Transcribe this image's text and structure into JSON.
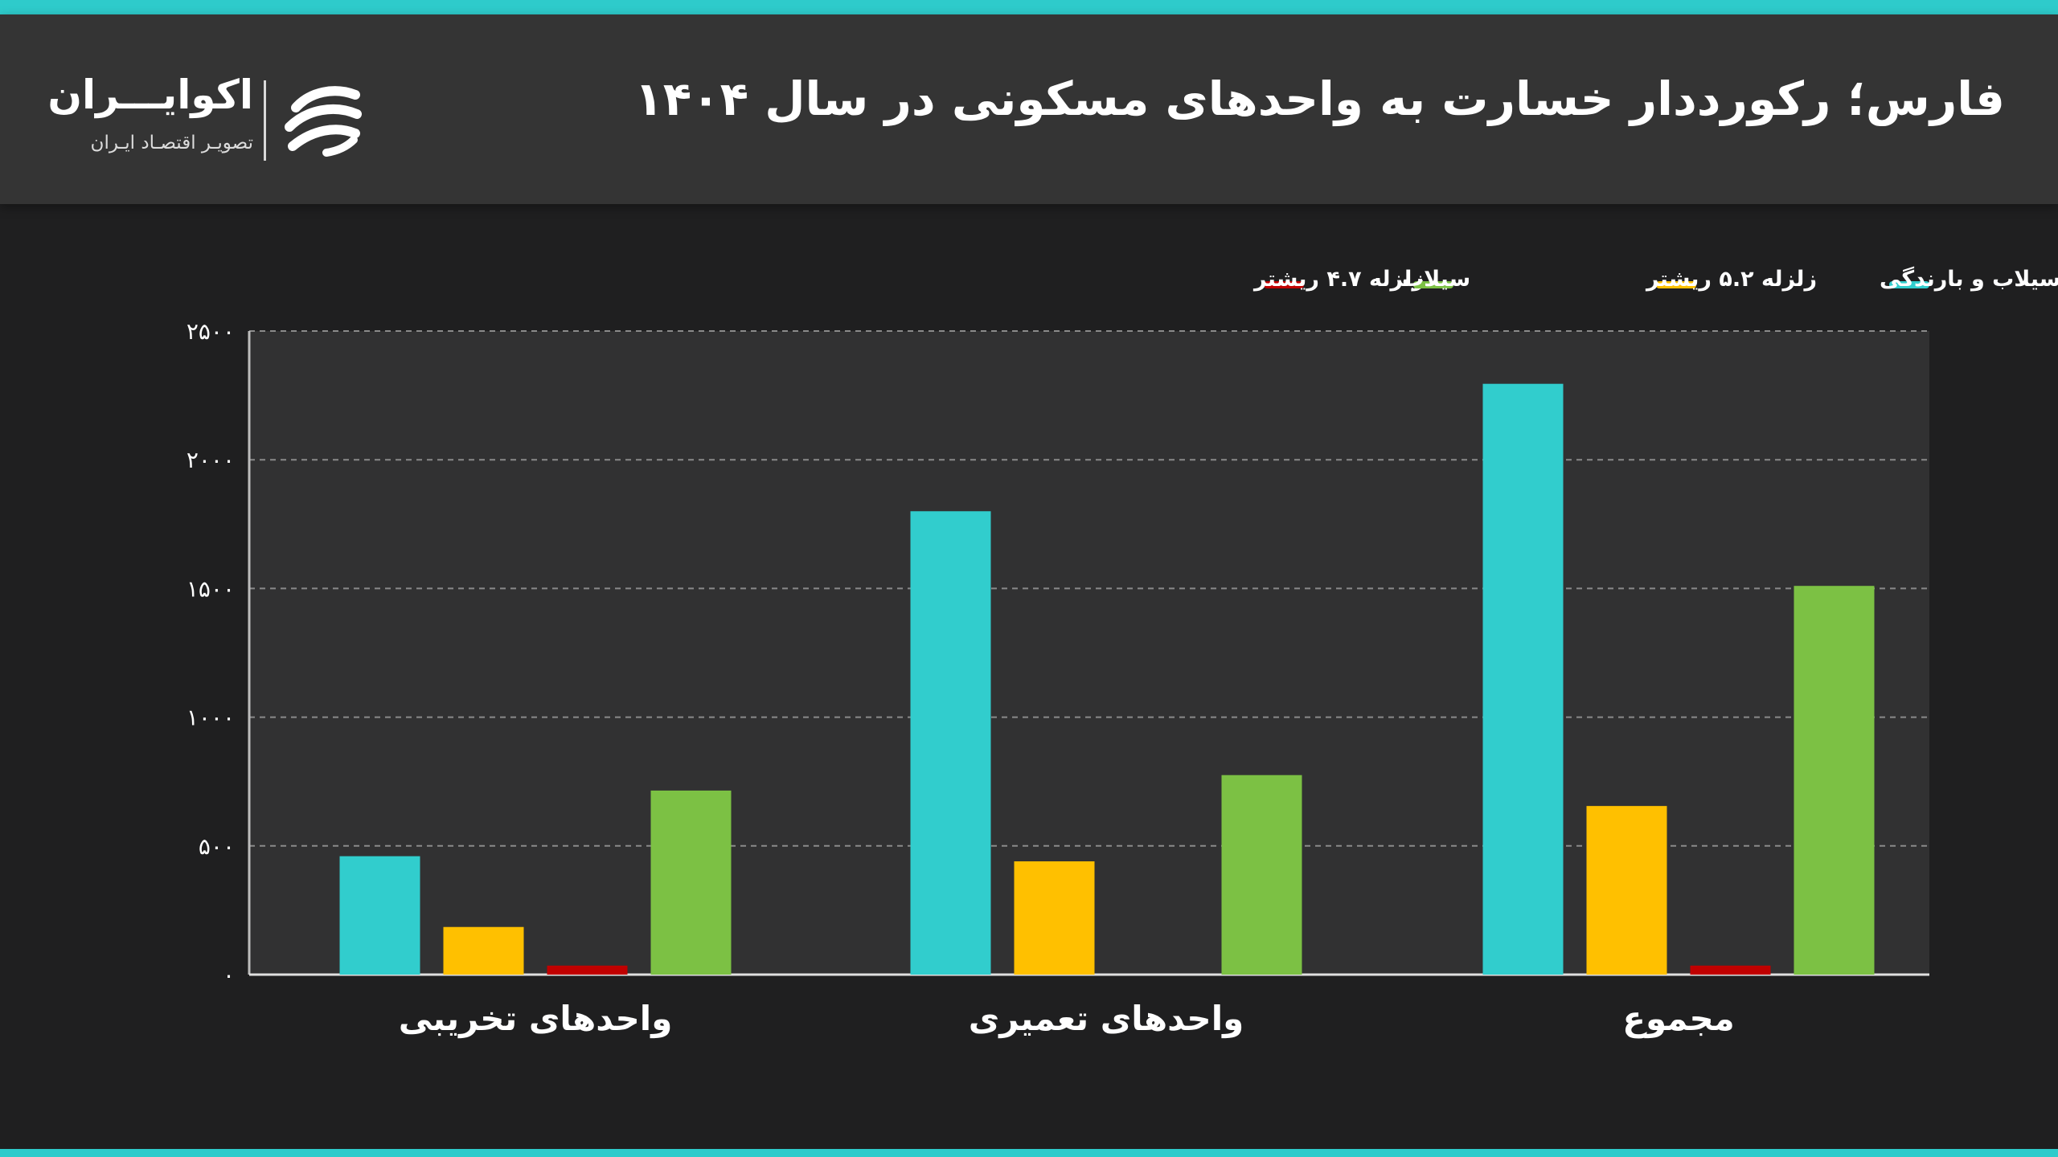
{
  "header": {
    "title": "فارس؛ رکورددار خسارت به واحدهای مسکونی در سال ۱۴۰۴",
    "logo_name": "اکوایـــران",
    "logo_subtitle": "تصویـر اقتصـاد ایـران",
    "logo_icon": "ecoiran-logo-icon"
  },
  "colors": {
    "accent": "#2ecbcb",
    "header_bg": "#343434",
    "plot_bg": "#313132",
    "page_bg": "#1f1f20"
  },
  "chart_data": {
    "type": "bar",
    "title": "",
    "xlabel": "",
    "ylabel": "",
    "categories": [
      "واحدهای تخریبی",
      "واحدهای تعمیری",
      "مجموع"
    ],
    "ylim": [
      0,
      2500
    ],
    "yticks": [
      0,
      500,
      1000,
      1500,
      2000,
      2500
    ],
    "ytick_labels": [
      "۰",
      "۵۰۰",
      "۱۰۰۰",
      "۱۵۰۰",
      "۲۰۰۰",
      "۲۵۰۰"
    ],
    "grid": true,
    "legend_position": "top",
    "series": [
      {
        "name": "سیلاب و بارندگی",
        "color": "#31cdcd",
        "values": [
          460,
          1800,
          2295
        ]
      },
      {
        "name": "زلزله ۵.۲ ریشتر",
        "color": "#ffc000",
        "values": [
          185,
          440,
          655
        ]
      },
      {
        "name": "زلزله ۴.۷ ریشتر",
        "color": "#c00000",
        "values": [
          35,
          0,
          35
        ]
      },
      {
        "name": "سیلاب",
        "color": "#7cc144",
        "values": [
          715,
          775,
          1510
        ]
      }
    ]
  }
}
